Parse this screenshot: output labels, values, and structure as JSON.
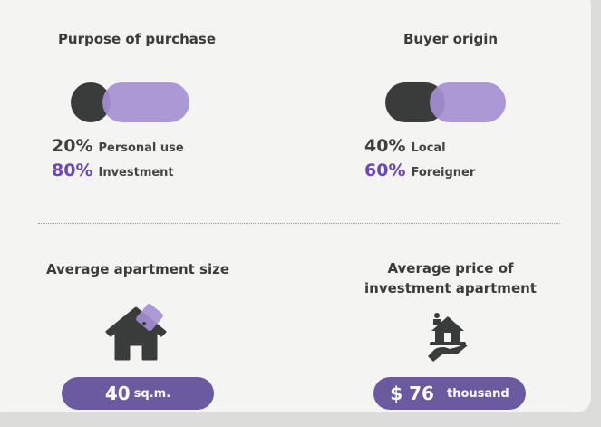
{
  "purpose": {
    "title": "Purpose of purchase",
    "items": [
      {
        "percent": "20%",
        "label": "Personal use"
      },
      {
        "percent": "80%",
        "label": "Investment"
      }
    ],
    "share": [
      20,
      80
    ]
  },
  "origin": {
    "title": "Buyer origin",
    "items": [
      {
        "percent": "40%",
        "label": "Local"
      },
      {
        "percent": "60%",
        "label": "Foreigner"
      }
    ],
    "share": [
      40,
      60
    ]
  },
  "size": {
    "title": "Average apartment size",
    "value": "40",
    "unit": "sq.m."
  },
  "price": {
    "title_line1": "Average price of",
    "title_line2": "investment apartment",
    "value": "$ 76",
    "unit": "thousand"
  },
  "colors": {
    "dark": "#3a3b3b",
    "purple": "#a48fd3",
    "accent": "#6a48b0",
    "pill": "#6b5a9e"
  },
  "icons": {
    "size": "house-tag-icon",
    "price": "hand-holding-house-icon"
  }
}
